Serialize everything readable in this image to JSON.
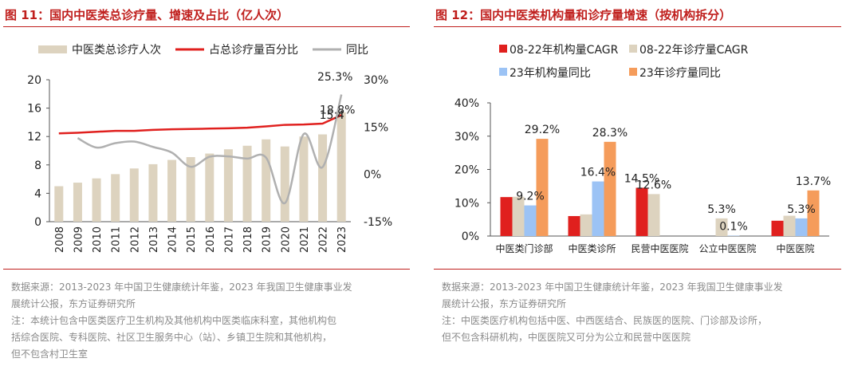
{
  "left": {
    "title": "图 11：国内中医类总诊疗量、增速及占比（亿人次）",
    "notes": [
      "数据来源：2013-2023 年中国卫生健康统计年鉴，2023 年我国卫生健康事业发",
      "展统计公报，东方证券研究所",
      "注：本统计包含中医类医疗卫生机构及其他机构中医类临床科室，其他机构包",
      "括综合医院、专科医院、社区卫生服务中心（站）、乡镇卫生院和其他机构，",
      "但不包含村卫生室"
    ]
  },
  "right": {
    "title": "图 12：国内中医类机构量和诊疗量增速（按机构拆分）",
    "notes": [
      "数据来源：2013-2023 年中国卫生健康统计年鉴，2023 年我国卫生健康事业发",
      "展统计公报，东方证券研究所",
      "注：中医类医疗机构包括中医、中西医结合、民族医的医院、门诊部及诊所，",
      "但不包含科研机构，中医医院又可分为公立和民营中医医院"
    ]
  },
  "chart_data": [
    {
      "type": "bar",
      "categories": [
        "2008",
        "2009",
        "2010",
        "2011",
        "2012",
        "2013",
        "2014",
        "2015",
        "2016",
        "2017",
        "2018",
        "2019",
        "2020",
        "2021",
        "2022",
        "2023"
      ],
      "series": [
        {
          "name": "中医类总诊疗人次",
          "type": "bar",
          "axis": "left",
          "color": "#ddd3bf",
          "values": [
            5.0,
            5.5,
            6.1,
            6.7,
            7.5,
            8.1,
            8.7,
            9.1,
            9.6,
            10.2,
            10.7,
            11.6,
            10.6,
            12.0,
            12.3,
            15.4
          ]
        },
        {
          "name": "占总诊疗量百分比",
          "type": "line",
          "axis": "right",
          "color": "#e0201e",
          "values": [
            13.0,
            13.2,
            13.5,
            13.8,
            13.8,
            14.1,
            14.3,
            14.4,
            14.5,
            14.6,
            14.8,
            15.2,
            15.7,
            15.8,
            16.1,
            18.8
          ]
        },
        {
          "name": "同比",
          "type": "line",
          "axis": "right",
          "color": "#b0b0b0",
          "values": [
            null,
            11.5,
            8.5,
            9.9,
            10.4,
            8.7,
            6.9,
            2.4,
            5.6,
            5.7,
            5.0,
            5.3,
            -9.1,
            12.8,
            2.3,
            25.3
          ]
        }
      ],
      "ylim": [
        0,
        20
      ],
      "yticks": [
        "0",
        "4",
        "8",
        "12",
        "16",
        "20"
      ],
      "y2lim": [
        -15,
        30
      ],
      "y2ticks": [
        "-15%",
        "0%",
        "15%",
        "30%"
      ],
      "annotations": {
        "bar_last": "15.4",
        "share_last": "18.8%",
        "yoy_last": "25.3%"
      },
      "legend": "top"
    },
    {
      "type": "bar",
      "categories": [
        "中医类门诊部",
        "中医类诊所",
        "民营中医医院",
        "公立中医医院",
        "中医医院"
      ],
      "series": [
        {
          "name": "08-22年机构量CAGR",
          "color": "#e0201e",
          "values": [
            11.7,
            6.0,
            14.5,
            null,
            4.6
          ]
        },
        {
          "name": "08-22年诊疗量CAGR",
          "color": "#ddd3bf",
          "values": [
            11.8,
            6.5,
            12.6,
            5.3,
            6.1
          ]
        },
        {
          "name": "23年机构量同比",
          "color": "#9cc3f5",
          "values": [
            9.2,
            16.4,
            null,
            0.1,
            5.3
          ]
        },
        {
          "name": "23年诊疗量同比",
          "color": "#f59c5b",
          "values": [
            29.2,
            28.3,
            null,
            null,
            13.7
          ]
        }
      ],
      "ylim": [
        0,
        40
      ],
      "yticks": [
        "0%",
        "10%",
        "20%",
        "30%",
        "40%"
      ],
      "data_labels": [
        {
          "cat": 0,
          "series": 2,
          "text": "9.2%"
        },
        {
          "cat": 0,
          "series": 3,
          "text": "29.2%"
        },
        {
          "cat": 1,
          "series": 2,
          "text": "16.4%"
        },
        {
          "cat": 1,
          "series": 3,
          "text": "28.3%"
        },
        {
          "cat": 2,
          "series": 0,
          "text": "14.5%"
        },
        {
          "cat": 2,
          "series": 1,
          "text": "12.6%"
        },
        {
          "cat": 3,
          "series": 1,
          "text": "5.3%"
        },
        {
          "cat": 3,
          "series": 2,
          "text": "0.1%"
        },
        {
          "cat": 4,
          "series": 2,
          "text": "5.3%"
        },
        {
          "cat": 4,
          "series": 3,
          "text": "13.7%"
        }
      ],
      "legend": "top-left"
    }
  ]
}
